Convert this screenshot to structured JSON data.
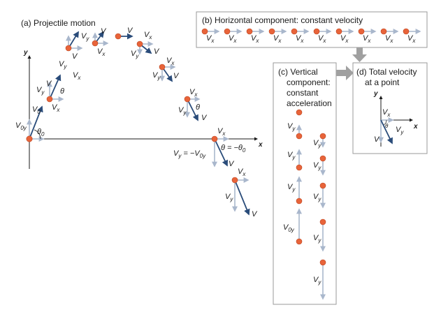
{
  "panels": {
    "a": {
      "title": "(a) Projectile motion"
    },
    "b": {
      "title": "(b) Horizontal component: constant velocity"
    },
    "c": {
      "title_lines": [
        "(c) Vertical",
        "component:",
        "constant",
        "acceleration"
      ]
    },
    "d": {
      "title_lines": [
        "(d) Total velocity",
        "at a point"
      ]
    }
  },
  "axes": {
    "x": "x",
    "y": "y"
  },
  "symbols": {
    "v": "V",
    "vx": "V",
    "vx_sub": "x",
    "vy": "V",
    "vy_sub": "y",
    "v0": "V",
    "v0_sub": "0",
    "v0y": "V",
    "v0y_sub": "0y",
    "theta": "θ",
    "theta0": "θ",
    "theta0_sub": "0",
    "eq_vy": "V",
    "eq_vy_sub": "y",
    "eq_vy_rhs": " = −V",
    "eq_vy_rhs_sub": "0y",
    "eq_theta": "θ = −θ",
    "eq_theta_sub": "0"
  },
  "colors": {
    "ball": "#e8643a",
    "velocity": "#2a4c7a",
    "component": "#a9b7cc",
    "panel_border": "#9a9a9a",
    "flow_arrow": "#a0a0a0"
  }
}
